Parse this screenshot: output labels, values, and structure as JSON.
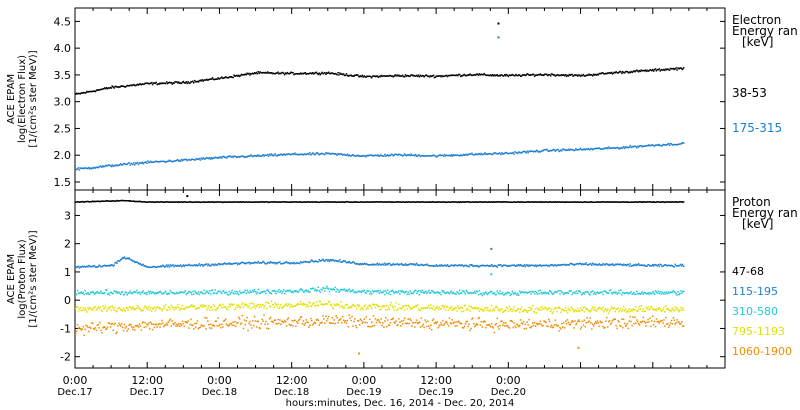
{
  "chart_data": [
    {
      "type": "scatter",
      "panel": "electron",
      "ylabel_lines": [
        "ACE EPAM",
        "log(Electron Flux)",
        "[1/(cm²s ster MeV)]"
      ],
      "ylim": [
        1.35,
        4.75
      ],
      "yticks": [
        "1.5",
        "2.0",
        "2.5",
        "3.0",
        "3.5",
        "4.0",
        "4.5"
      ],
      "ytick_values": [
        1.5,
        2.0,
        2.5,
        3.0,
        3.5,
        4.0,
        4.5
      ],
      "legend_title_lines": [
        "Electron",
        "Energy ran",
        "[keV]"
      ],
      "series": [
        {
          "name": "38-53",
          "color": "#000000",
          "points": [
            [
              0,
              3.15
            ],
            [
              6,
              3.28
            ],
            [
              12,
              3.35
            ],
            [
              18,
              3.37
            ],
            [
              24,
              3.45
            ],
            [
              30,
              3.55
            ],
            [
              36,
              3.54
            ],
            [
              42,
              3.55
            ],
            [
              48,
              3.48
            ],
            [
              54,
              3.5
            ],
            [
              60,
              3.49
            ],
            [
              66,
              3.52
            ],
            [
              72,
              3.5
            ],
            [
              78,
              3.52
            ],
            [
              84,
              3.5
            ],
            [
              90,
              3.56
            ],
            [
              96,
              3.6
            ],
            [
              101,
              3.64
            ]
          ]
        },
        {
          "name": "175-315",
          "color": "#1e7fd0",
          "points": [
            [
              0,
              1.75
            ],
            [
              6,
              1.82
            ],
            [
              12,
              1.88
            ],
            [
              18,
              1.92
            ],
            [
              24,
              1.97
            ],
            [
              30,
              2.0
            ],
            [
              36,
              2.03
            ],
            [
              42,
              2.04
            ],
            [
              48,
              2.0
            ],
            [
              54,
              2.02
            ],
            [
              60,
              2.0
            ],
            [
              66,
              2.03
            ],
            [
              72,
              2.05
            ],
            [
              78,
              2.1
            ],
            [
              84,
              2.12
            ],
            [
              90,
              2.15
            ],
            [
              96,
              2.2
            ],
            [
              101,
              2.23
            ]
          ]
        }
      ],
      "outliers": [
        {
          "series": "38-53",
          "x": 70.2,
          "y": 4.48
        },
        {
          "series": "175-315",
          "x": 70.2,
          "y": 4.22
        }
      ]
    },
    {
      "type": "scatter",
      "panel": "proton",
      "ylabel_lines": [
        "ACE EPAM",
        "log(Proton Flux)",
        "[1/(cm²s ster MeV)]"
      ],
      "ylim": [
        -2.4,
        3.9
      ],
      "yticks": [
        "3",
        "2",
        "1",
        "0",
        "-1",
        "-2"
      ],
      "ytick_values": [
        3,
        2,
        1,
        0,
        -1,
        -2
      ],
      "legend_title_lines": [
        "Proton",
        "Energy ran",
        "[keV]"
      ],
      "series": [
        {
          "name": "47-68",
          "color": "#000000",
          "points": [
            [
              0,
              3.5
            ],
            [
              8,
              3.55
            ],
            [
              12,
              3.5
            ],
            [
              24,
              3.5
            ],
            [
              36,
              3.5
            ],
            [
              48,
              3.5
            ],
            [
              60,
              3.5
            ],
            [
              72,
              3.5
            ],
            [
              84,
              3.5
            ],
            [
              96,
              3.5
            ],
            [
              101,
              3.5
            ]
          ]
        },
        {
          "name": "115-195",
          "color": "#1e7fd0",
          "points": [
            [
              0,
              1.2
            ],
            [
              6,
              1.25
            ],
            [
              8,
              1.55
            ],
            [
              12,
              1.2
            ],
            [
              18,
              1.25
            ],
            [
              24,
              1.3
            ],
            [
              30,
              1.35
            ],
            [
              36,
              1.35
            ],
            [
              42,
              1.45
            ],
            [
              48,
              1.3
            ],
            [
              54,
              1.3
            ],
            [
              60,
              1.25
            ],
            [
              66,
              1.25
            ],
            [
              72,
              1.25
            ],
            [
              78,
              1.25
            ],
            [
              84,
              1.3
            ],
            [
              90,
              1.28
            ],
            [
              96,
              1.25
            ],
            [
              101,
              1.25
            ]
          ]
        },
        {
          "name": "310-580",
          "color": "#22c8d8",
          "points": [
            [
              0,
              0.3
            ],
            [
              12,
              0.28
            ],
            [
              24,
              0.3
            ],
            [
              36,
              0.35
            ],
            [
              42,
              0.42
            ],
            [
              48,
              0.32
            ],
            [
              60,
              0.3
            ],
            [
              72,
              0.28
            ],
            [
              84,
              0.3
            ],
            [
              96,
              0.28
            ],
            [
              101,
              0.3
            ]
          ]
        },
        {
          "name": "795-1193",
          "color": "#e0e000",
          "points": [
            [
              0,
              -0.3
            ],
            [
              12,
              -0.25
            ],
            [
              24,
              -0.2
            ],
            [
              36,
              -0.15
            ],
            [
              42,
              -0.12
            ],
            [
              48,
              -0.2
            ],
            [
              60,
              -0.25
            ],
            [
              72,
              -0.3
            ],
            [
              84,
              -0.3
            ],
            [
              96,
              -0.3
            ],
            [
              101,
              -0.28
            ]
          ]
        },
        {
          "name": "1060-1900",
          "color": "#f08c00",
          "points": [
            [
              0,
              -1.0
            ],
            [
              12,
              -0.85
            ],
            [
              24,
              -0.8
            ],
            [
              36,
              -0.75
            ],
            [
              42,
              -0.7
            ],
            [
              48,
              -0.75
            ],
            [
              60,
              -0.8
            ],
            [
              72,
              -0.85
            ],
            [
              84,
              -0.8
            ],
            [
              96,
              -0.75
            ],
            [
              101,
              -0.75
            ]
          ]
        }
      ],
      "outliers": [
        {
          "series": "47-68",
          "x": 18.5,
          "y": 3.72
        },
        {
          "series": "115-195",
          "x": 69.0,
          "y": 1.85
        },
        {
          "series": "310-580",
          "x": 69.0,
          "y": 0.95
        },
        {
          "series": "1060-1900",
          "x": 47.0,
          "y": -1.85
        },
        {
          "series": "1060-1900",
          "x": 83.5,
          "y": -1.65
        }
      ]
    }
  ],
  "x_axis": {
    "xlim_hours": [
      0,
      108
    ],
    "ticks": [
      {
        "hours": 0,
        "time": "0:00",
        "date": "Dec.17"
      },
      {
        "hours": 12,
        "time": "12:00",
        "date": "Dec.17"
      },
      {
        "hours": 24,
        "time": "0:00",
        "date": "Dec.18"
      },
      {
        "hours": 36,
        "time": "12:00",
        "date": "Dec.18"
      },
      {
        "hours": 48,
        "time": "0:00",
        "date": "Dec.19"
      },
      {
        "hours": 60,
        "time": "12:00",
        "date": "Dec.19"
      },
      {
        "hours": 72,
        "time": "0:00",
        "date": "Dec.20"
      }
    ],
    "xlabel": "hours:minutes, Dec. 16, 2014 - Dec. 20, 2014"
  }
}
